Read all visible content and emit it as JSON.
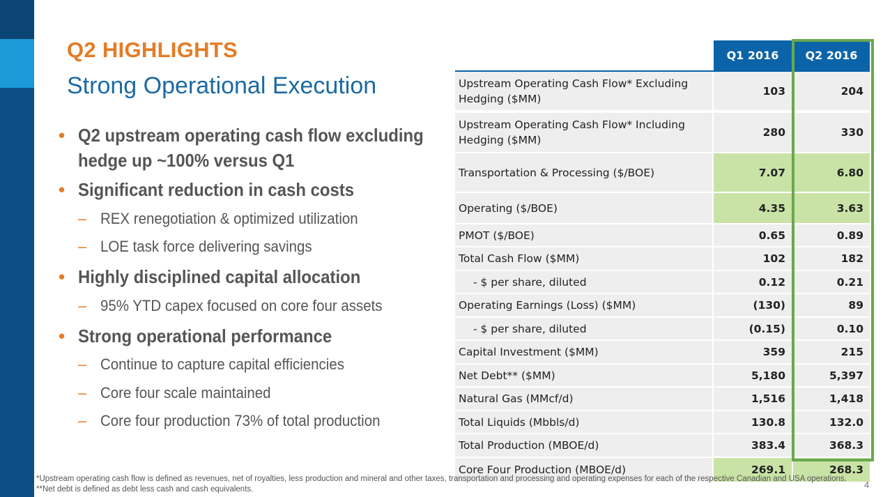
{
  "slide": {
    "title": "Q2 HIGHLIGHTS",
    "subtitle": "Strong Operational Execution",
    "page_number": "4"
  },
  "bullets": [
    {
      "text_lines": [
        "Q2 upstream operating cash flow excluding",
        "hedge up ~100% versus Q1"
      ],
      "subs": []
    },
    {
      "text_lines": [
        "Significant reduction in cash costs"
      ],
      "subs": [
        "REX renegotiation & optimized utilization",
        "LOE task force delivering savings"
      ]
    },
    {
      "text_lines": [
        "Highly disciplined capital allocation"
      ],
      "subs": [
        "95% YTD capex focused on core four assets"
      ]
    },
    {
      "text_lines": [
        "Strong operational performance"
      ],
      "subs": [
        "Continue to capture capital efficiencies",
        "Core four scale maintained",
        "Core four production 73% of total production"
      ]
    }
  ],
  "table": {
    "headers": [
      "Q1 2016",
      "Q2 2016"
    ],
    "rows": [
      {
        "label": "Upstream Operating Cash Flow* Excluding Hedging ($MM)",
        "q1": "103",
        "q2": "204",
        "highlight": false
      },
      {
        "label": "Upstream Operating Cash Flow* Including Hedging ($MM)",
        "q1": "280",
        "q2": "330",
        "highlight": false
      },
      {
        "label": "Transportation & Processing ($/BOE)",
        "q1": "7.07",
        "q2": "6.80",
        "highlight": true
      },
      {
        "label": "Operating ($/BOE)",
        "q1": "4.35",
        "q2": "3.63",
        "highlight": true
      },
      {
        "label": "PMOT ($/BOE)",
        "q1": "0.65",
        "q2": "0.89",
        "highlight": false
      },
      {
        "label": "Total Cash Flow ($MM)",
        "q1": "102",
        "q2": "182",
        "highlight": false
      },
      {
        "label": "    - $ per share, diluted",
        "q1": "0.12",
        "q2": "0.21",
        "highlight": false
      },
      {
        "label": "Operating Earnings (Loss) ($MM)",
        "q1": "(130)",
        "q2": "89",
        "highlight": false
      },
      {
        "label": "    - $ per share, diluted",
        "q1": "(0.15)",
        "q2": "0.10",
        "highlight": false
      },
      {
        "label": "Capital Investment ($MM)",
        "q1": "359",
        "q2": "215",
        "highlight": false
      },
      {
        "label": "Net Debt** ($MM)",
        "q1": "5,180",
        "q2": "5,397",
        "highlight": false
      },
      {
        "label": "Natural Gas (MMcf/d)",
        "q1": "1,516",
        "q2": "1,418",
        "highlight": false
      },
      {
        "label": "Total Liquids (Mbbls/d)",
        "q1": "130.8",
        "q2": "132.0",
        "highlight": false
      },
      {
        "label": "Total Production (MBOE/d)",
        "q1": "383.4",
        "q2": "368.3",
        "highlight": false
      },
      {
        "label": "Core Four Production (MBOE/d)",
        "q1": "269.1",
        "q2": "268.3",
        "highlight": true
      }
    ]
  },
  "footnotes": [
    "*Upstream operating cash flow is defined as revenues, net of royalties, less production and mineral and other taxes, transportation and processing and operating expenses for each of the respective Canadian and USA operations.",
    "**Net debt is defined as debt less cash and cash equivalents."
  ],
  "colors": {
    "accent_orange": "#e57c25",
    "title_blue": "#1b6aa3",
    "header_blue": "#0b63a8",
    "highlight_green": "#c9e3a6",
    "frame_green": "#6aa84f"
  }
}
